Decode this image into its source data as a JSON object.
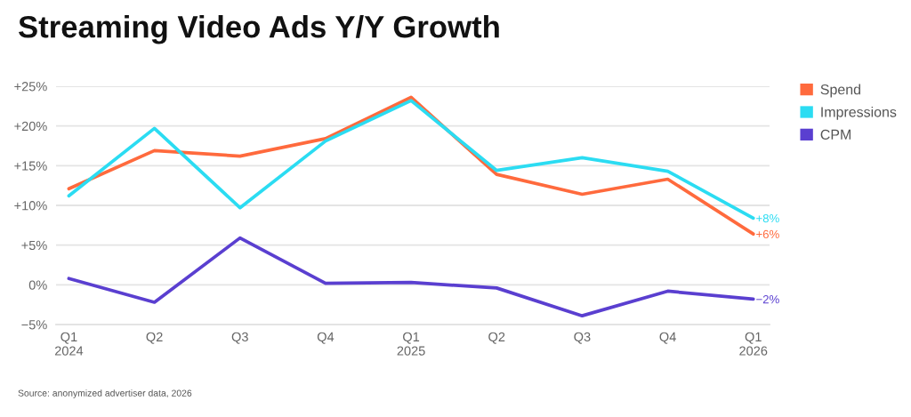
{
  "chart_data": {
    "type": "line",
    "title": "Streaming Video Ads Y/Y Growth",
    "categories": [
      "Q1\n2024",
      "Q2",
      "Q3",
      "Q4",
      "Q1\n2025",
      "Q2",
      "Q3",
      "Q4",
      "Q1\n2026"
    ],
    "series": [
      {
        "name": "Spend",
        "color": "#ff6a3d",
        "values": [
          12.1,
          16.9,
          16.2,
          18.4,
          23.6,
          13.9,
          11.4,
          13.3,
          6.4
        ],
        "value_labels": [
          null,
          null,
          null,
          null,
          null,
          null,
          null,
          null,
          "+6%"
        ]
      },
      {
        "name": "Impressions",
        "color": "#2bdcf2",
        "values": [
          11.2,
          19.7,
          9.7,
          18.1,
          23.2,
          14.4,
          16.0,
          14.3,
          8.4
        ],
        "value_labels": [
          null,
          null,
          null,
          null,
          null,
          null,
          null,
          null,
          "+8%"
        ]
      },
      {
        "name": "CPM",
        "color": "#5a3fd0",
        "values": [
          0.8,
          -2.2,
          5.9,
          0.2,
          0.3,
          -0.4,
          -3.9,
          -0.8,
          -1.8
        ],
        "value_labels": [
          null,
          null,
          null,
          null,
          null,
          null,
          null,
          null,
          "−2%"
        ]
      }
    ],
    "ylim": [
      -5,
      25
    ],
    "yticks": [
      {
        "value": -5,
        "label": "−5%"
      },
      {
        "value": 0,
        "label": "0%"
      },
      {
        "value": 5,
        "label": "+5%"
      },
      {
        "value": 10,
        "label": "+10%"
      },
      {
        "value": 15,
        "label": "+15%"
      },
      {
        "value": 20,
        "label": "+20%"
      },
      {
        "value": 25,
        "label": "+25%"
      }
    ],
    "grid": "y",
    "legend": "top right",
    "line_style": "solid",
    "annotations": [
      "Source: anonymized advertiser data, 2026"
    ]
  }
}
